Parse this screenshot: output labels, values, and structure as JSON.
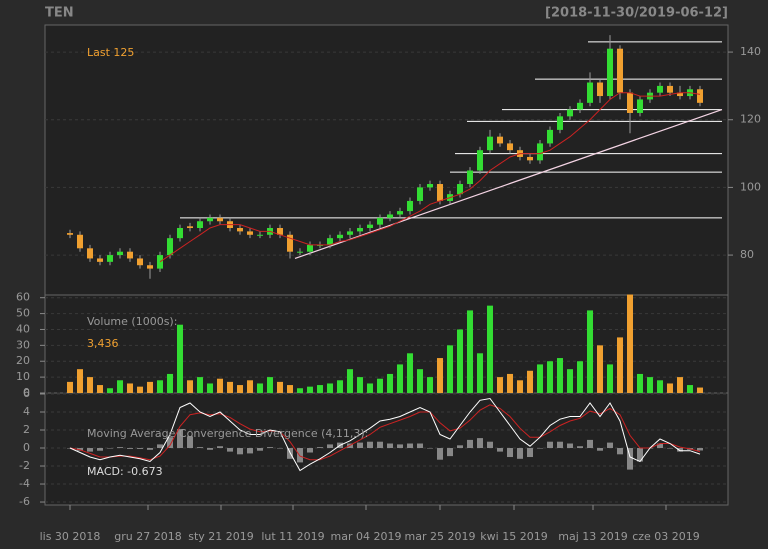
{
  "title": "TEN",
  "date_range": "[2018-11-30/2019-06-12]",
  "chart_data": [
    {
      "type": "candlestick",
      "label": "Last 125",
      "open": [
        86.5,
        86,
        82,
        79,
        78,
        80,
        81,
        79,
        77,
        76,
        80,
        85,
        88.5,
        88,
        90,
        91,
        90,
        88,
        87,
        86,
        86,
        88,
        86,
        81,
        81,
        83,
        83,
        85,
        86,
        87,
        88,
        89,
        91,
        92,
        93,
        96,
        100,
        101,
        96,
        98,
        101,
        105,
        111,
        115,
        113,
        111,
        109,
        108,
        113,
        117,
        121,
        123,
        125,
        131,
        127,
        141,
        128,
        122,
        126,
        128,
        130,
        128,
        127,
        129
      ],
      "high": [
        87.5,
        87,
        83,
        80,
        81,
        82,
        82,
        80,
        78,
        81,
        86,
        89,
        89.5,
        91,
        92,
        92,
        91,
        89,
        88,
        87,
        89,
        89,
        87,
        82,
        84,
        84,
        86,
        87,
        88,
        89,
        90,
        92,
        93,
        94,
        97,
        101,
        102,
        102,
        99,
        102,
        106,
        112,
        117,
        116,
        114,
        112,
        110,
        114,
        118,
        122,
        124,
        126,
        134,
        132,
        145,
        142,
        129,
        127,
        129,
        131,
        131,
        130,
        130,
        130
      ],
      "low": [
        85,
        81,
        78,
        77,
        77,
        79,
        78,
        76,
        73,
        75,
        79,
        84,
        87,
        87,
        89,
        89,
        87,
        86,
        85,
        85,
        85,
        85,
        79,
        80,
        80,
        82,
        82,
        84,
        85,
        86,
        87,
        88,
        90,
        91,
        92,
        95,
        99,
        95,
        95,
        97,
        100,
        104,
        110,
        112,
        110,
        108,
        107,
        107,
        112,
        116,
        120,
        122,
        124,
        125,
        126,
        126,
        116,
        121,
        125,
        127,
        127,
        126,
        126,
        124
      ],
      "close": [
        86,
        82,
        79,
        78,
        80,
        81,
        79,
        77,
        76,
        80,
        85,
        88,
        88,
        90,
        91,
        90,
        88,
        87,
        86,
        86,
        88,
        86,
        81,
        81,
        83,
        83,
        85,
        86,
        87,
        88,
        89,
        91,
        92,
        93,
        96,
        100,
        101,
        96,
        98,
        101,
        105,
        111,
        115,
        113,
        111,
        109,
        108,
        113,
        117,
        121,
        123,
        125,
        131,
        127,
        141,
        128,
        122,
        126,
        128,
        130,
        128,
        127,
        129,
        125
      ],
      "ma": [
        null,
        null,
        null,
        null,
        null,
        null,
        null,
        null,
        null,
        78,
        80,
        82,
        84,
        86,
        88,
        89,
        89,
        89,
        88,
        87,
        87,
        86,
        85,
        84,
        83,
        83,
        83,
        84,
        84.5,
        85.5,
        86.5,
        87.5,
        88.5,
        90,
        91.5,
        93,
        95,
        96,
        97,
        98,
        99.5,
        102,
        105,
        107,
        109,
        110,
        110,
        110,
        111,
        113,
        115,
        117.5,
        120,
        123,
        126,
        128,
        128,
        127,
        127,
        127,
        127.5,
        128,
        128,
        127.5
      ],
      "up_color": "#33dd33",
      "down_color": "#f0a030",
      "ma_color": "#cc2222",
      "levels": [
        91,
        104.5,
        110,
        119.5,
        123,
        132,
        143
      ],
      "trendline": [
        79,
        123
      ],
      "ylim": [
        68.2,
        148
      ],
      "yticks": [
        80,
        100,
        120,
        140
      ],
      "grid": true
    },
    {
      "type": "bar",
      "label": "Volume (1000s):",
      "last_label": "3,436",
      "values": [
        7,
        15,
        10,
        5,
        3,
        8,
        6,
        4,
        7,
        8,
        12,
        43,
        8,
        10,
        6,
        9,
        7,
        5,
        8,
        6,
        10,
        7,
        5,
        3,
        4,
        5,
        6,
        8,
        15,
        10,
        6,
        9,
        12,
        18,
        25,
        15,
        10,
        22,
        30,
        40,
        52,
        25,
        55,
        10,
        12,
        8,
        14,
        18,
        20,
        22,
        15,
        20,
        52,
        30,
        18,
        35,
        62,
        12,
        10,
        8,
        6,
        10,
        5,
        3.436
      ],
      "ylim": [
        0,
        61.7
      ],
      "yticks": [
        0,
        10,
        20,
        30,
        40,
        50,
        60
      ],
      "grid": true
    },
    {
      "type": "macd",
      "label": "Moving Average Convergence Divergence (4,11,3):",
      "value_label": "MACD: -0.673",
      "macd": [
        0,
        -0.5,
        -1,
        -1.3,
        -1,
        -0.8,
        -1,
        -1.2,
        -1.5,
        -0.5,
        1.5,
        4.5,
        5,
        4,
        3.5,
        4,
        3,
        2,
        1.5,
        1.5,
        2,
        1.8,
        -0.5,
        -2.5,
        -1.8,
        -1.2,
        -0.5,
        0.3,
        0.8,
        1.5,
        2.2,
        3,
        3.2,
        3.5,
        4,
        4.5,
        4,
        1.5,
        1,
        2.5,
        4,
        5.3,
        5.5,
        4,
        2.5,
        1,
        0.2,
        1.2,
        2.5,
        3.2,
        3.5,
        3.5,
        5,
        3.5,
        5,
        3,
        -1,
        -1.5,
        0,
        1,
        0.5,
        -0.3,
        -0.3,
        -0.673
      ],
      "signal": [
        0,
        -0.2,
        -0.6,
        -1,
        -1,
        -0.9,
        -0.9,
        -1.1,
        -1.3,
        -0.9,
        0.3,
        2.4,
        3.7,
        3.9,
        3.7,
        3.8,
        3.4,
        2.7,
        2.1,
        1.8,
        1.9,
        1.8,
        0.7,
        -0.9,
        -1.3,
        -1.3,
        -0.9,
        -0.3,
        0.3,
        0.9,
        1.5,
        2.3,
        2.7,
        3.1,
        3.5,
        4,
        4,
        2.8,
        1.9,
        2.2,
        3.1,
        4.2,
        4.8,
        4.4,
        3.5,
        2.2,
        1.2,
        1.2,
        1.8,
        2.5,
        3,
        3.3,
        4.1,
        3.8,
        4.4,
        3.7,
        1.4,
        0,
        0,
        0.5,
        0.5,
        0.1,
        -0.1,
        -0.4
      ],
      "histogram": [
        0,
        -0.3,
        -0.4,
        -0.3,
        0,
        0.1,
        -0.1,
        -0.1,
        -0.2,
        0.4,
        1.2,
        2.1,
        1.3,
        0.1,
        -0.2,
        0.2,
        -0.4,
        -0.7,
        -0.6,
        -0.3,
        0.1,
        0,
        -1.2,
        -1.6,
        -0.5,
        0.1,
        0.4,
        0.6,
        0.5,
        0.6,
        0.7,
        0.7,
        0.5,
        0.4,
        0.5,
        0.5,
        0,
        -1.3,
        -0.9,
        0.3,
        0.9,
        1.1,
        0.7,
        -0.4,
        -1,
        -1.2,
        -1,
        0,
        0.7,
        0.7,
        0.5,
        0.2,
        0.9,
        -0.3,
        0.6,
        -0.7,
        -2.4,
        -1.5,
        0,
        0.5,
        0,
        -0.4,
        -0.2,
        -0.273
      ],
      "macd_color": "#ffffff",
      "signal_color": "#cc2222",
      "histogram_color": "#888888",
      "ylim": [
        -6.33,
        6.11
      ],
      "yticks": [
        -6,
        -4,
        -2,
        0,
        2,
        4,
        6
      ],
      "grid": true,
      "xlim": [
        -2.5,
        65.8
      ],
      "xticks": [
        {
          "value": 0,
          "label": "lis 30 2018"
        },
        {
          "value": 7.8,
          "label": "gru 27 2018"
        },
        {
          "value": 15.1,
          "label": "sty 21 2019"
        },
        {
          "value": 22.3,
          "label": "lut 11 2019"
        },
        {
          "value": 29.6,
          "label": "mar 04 2019"
        },
        {
          "value": 37,
          "label": "mar 25 2019"
        },
        {
          "value": 44.4,
          "label": "kwi 15 2019"
        },
        {
          "value": 52.3,
          "label": "maj 13 2019"
        },
        {
          "value": 59.6,
          "label": "cze 03 2019"
        }
      ]
    }
  ]
}
